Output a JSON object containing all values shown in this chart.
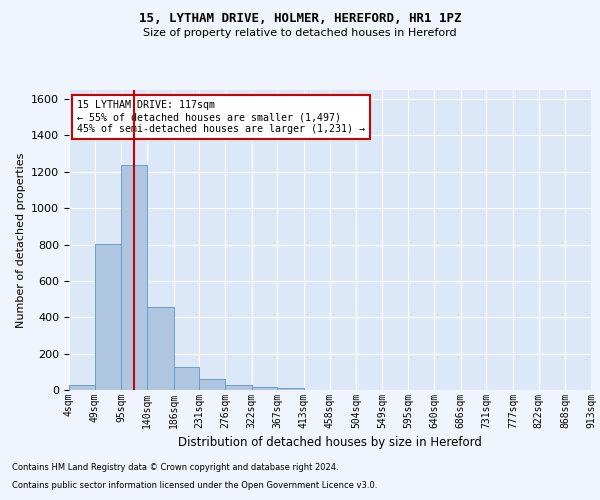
{
  "title1": "15, LYTHAM DRIVE, HOLMER, HEREFORD, HR1 1PZ",
  "title2": "Size of property relative to detached houses in Hereford",
  "xlabel": "Distribution of detached houses by size in Hereford",
  "ylabel": "Number of detached properties",
  "footnote1": "Contains HM Land Registry data © Crown copyright and database right 2024.",
  "footnote2": "Contains public sector information licensed under the Open Government Licence v3.0.",
  "annotation_line1": "15 LYTHAM DRIVE: 117sqm",
  "annotation_line2": "← 55% of detached houses are smaller (1,497)",
  "annotation_line3": "45% of semi-detached houses are larger (1,231) →",
  "bar_color": "#aec6e0",
  "bar_edge_color": "#6a9fc8",
  "vline_color": "#cc0000",
  "vline_x": 117,
  "ylim": [
    0,
    1650
  ],
  "bin_edges": [
    4,
    49,
    95,
    140,
    186,
    231,
    276,
    322,
    367,
    413,
    458,
    504,
    549,
    595,
    640,
    686,
    731,
    777,
    822,
    868,
    913
  ],
  "bin_labels": [
    "4sqm",
    "49sqm",
    "95sqm",
    "140sqm",
    "186sqm",
    "231sqm",
    "276sqm",
    "322sqm",
    "367sqm",
    "413sqm",
    "458sqm",
    "504sqm",
    "549sqm",
    "595sqm",
    "640sqm",
    "686sqm",
    "731sqm",
    "777sqm",
    "822sqm",
    "868sqm",
    "913sqm"
  ],
  "bar_heights": [
    25,
    805,
    1240,
    455,
    125,
    60,
    28,
    18,
    12,
    0,
    0,
    0,
    0,
    0,
    0,
    0,
    0,
    0,
    0,
    0
  ],
  "fig_background": "#f0f4fc",
  "plot_background": "#dce8f8",
  "grid_color": "#ffffff",
  "annotation_box_facecolor": "#ffffff",
  "annotation_box_edgecolor": "#cc0000"
}
